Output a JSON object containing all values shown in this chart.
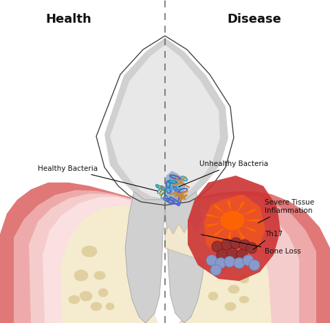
{
  "title_left": "Health",
  "title_right": "Disease",
  "title_fontsize": 13,
  "title_fontweight": "bold",
  "label_healthy_bacteria": "Healthy Bacteria",
  "label_unhealthy_bacteria": "Unhealthy Bacteria",
  "label_inflammation": "Severe Tissue\nInflammation",
  "label_th17": "Th17",
  "label_bone_loss": "Bone Loss",
  "bg_color": "#ffffff",
  "tooth_fill": "#d0d0d0",
  "tooth_fill_light": "#e8e8e8",
  "tooth_edge": "#999999",
  "tooth_outline_color": "#444444",
  "gum_outer_color": "#e07878",
  "gum_mid_color": "#eeaaaa",
  "gum_inner_color": "#f5cccc",
  "gum_innermost_color": "#fae0e0",
  "gum_core_color": "#f5ecd0",
  "bone_spots_color": "#e0d0a0",
  "inflamed_gum_color": "#cc3333",
  "inflamed_outer_color": "#ff6600",
  "inflamed_mid_color": "#ff9944",
  "th17_dark_color": "#993333",
  "th17_light_color": "#8899cc",
  "bacteria_teal": "#3399aa",
  "bacteria_orange": "#cc8833",
  "divider_color": "#555555",
  "annotation_color": "#111111",
  "figsize": [
    4.8,
    4.69
  ],
  "dpi": 100
}
